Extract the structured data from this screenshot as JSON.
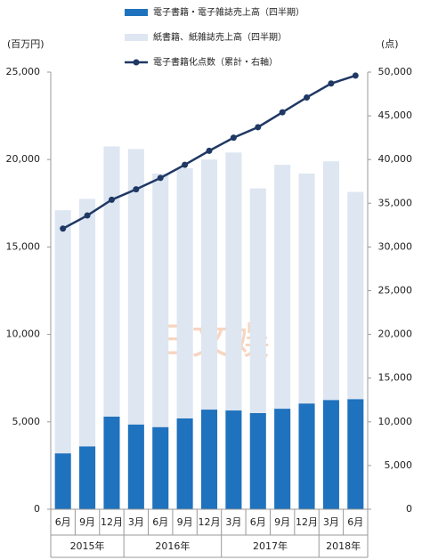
{
  "chart_data": {
    "type": "bar-line",
    "categories": [
      "6月",
      "9月",
      "12月",
      "3月",
      "6月",
      "9月",
      "12月",
      "3月",
      "6月",
      "9月",
      "12月",
      "3月",
      "6月"
    ],
    "year_labels": [
      "2015年",
      null,
      null,
      "2016年",
      null,
      null,
      null,
      "2017年",
      null,
      null,
      null,
      "2018年",
      null
    ],
    "series": [
      {
        "name": "電子書籍・電子雑誌売上高（四半期）",
        "color": "#1f72bd",
        "kind": "bar",
        "values": [
          3200,
          3600,
          5300,
          4850,
          4700,
          5200,
          5700,
          5650,
          5500,
          5750,
          6050,
          6250,
          6300
        ]
      },
      {
        "name": "紙書籍、紙雑誌売上高（四半期）",
        "color": "#dde6f1",
        "kind": "bar",
        "values": [
          13900,
          14150,
          15450,
          15750,
          14500,
          14300,
          14300,
          14750,
          12850,
          13950,
          13150,
          13650,
          11850
        ]
      },
      {
        "name": "電子書籍化点数（累計・右軸）",
        "color": "#1f3864",
        "kind": "line",
        "axis": "y2",
        "values": [
          32100,
          33600,
          35400,
          36600,
          37900,
          39400,
          41000,
          42500,
          43700,
          45400,
          47100,
          48700,
          49600
        ]
      }
    ],
    "ylabel": "(百万円)",
    "y2label": "(点)",
    "ylim": [
      0,
      25000
    ],
    "yticks": [
      0,
      {
        "value": 5000,
        "label": "5,000"
      },
      {
        "value": 10000,
        "label": "10,000"
      },
      {
        "value": 15000,
        "label": "15,000"
      },
      {
        "value": 20000,
        "label": "20,000"
      },
      {
        "value": 25000,
        "label": "25,000"
      }
    ],
    "y2lim": [
      0,
      50000
    ],
    "y2ticks": [
      0,
      {
        "value": 5000,
        "label": "5,000"
      },
      {
        "value": 10000,
        "label": "10,000"
      },
      {
        "value": 15000,
        "label": "15,000"
      },
      {
        "value": 20000,
        "label": "20,000"
      },
      {
        "value": 25000,
        "label": "25,000"
      },
      {
        "value": 30000,
        "label": "30,000"
      },
      {
        "value": 35000,
        "label": "35,000"
      },
      {
        "value": 40000,
        "label": "40,000"
      },
      {
        "value": 45000,
        "label": "45,000"
      },
      {
        "value": 50000,
        "label": "50,000"
      }
    ],
    "watermark": "三文娱"
  }
}
